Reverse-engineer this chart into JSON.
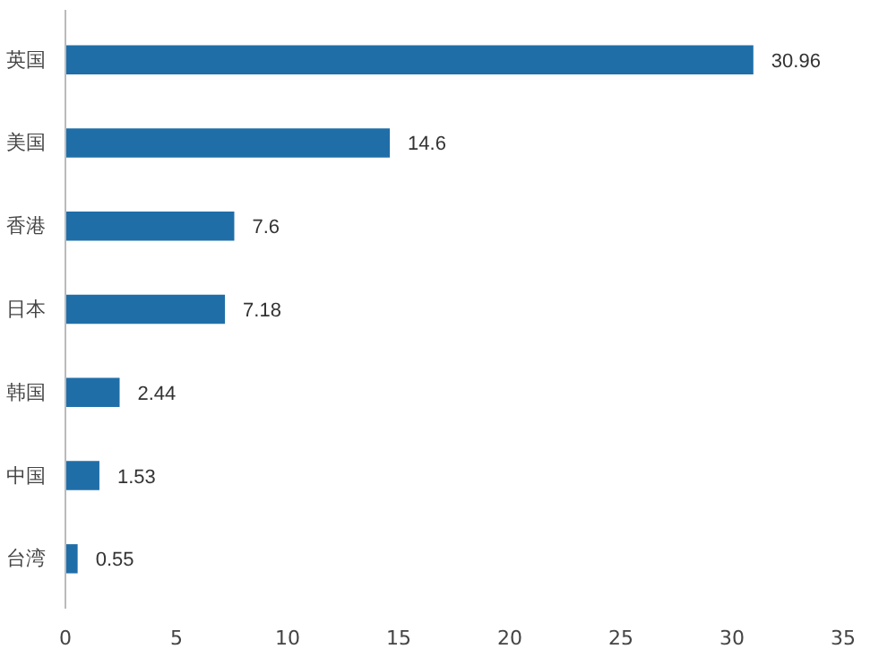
{
  "chart_data": {
    "type": "bar",
    "orientation": "horizontal",
    "categories": [
      "英国",
      "美国",
      "香港",
      "日本",
      "韩国",
      "中国",
      "台湾"
    ],
    "values": [
      30.96,
      14.6,
      7.6,
      7.18,
      2.44,
      1.53,
      0.55
    ],
    "color": "#1f6ea8",
    "xlim": [
      0,
      35
    ],
    "xticks": [
      0,
      5,
      10,
      15,
      20,
      25,
      30,
      35
    ],
    "data_labels": true,
    "grid": false
  }
}
